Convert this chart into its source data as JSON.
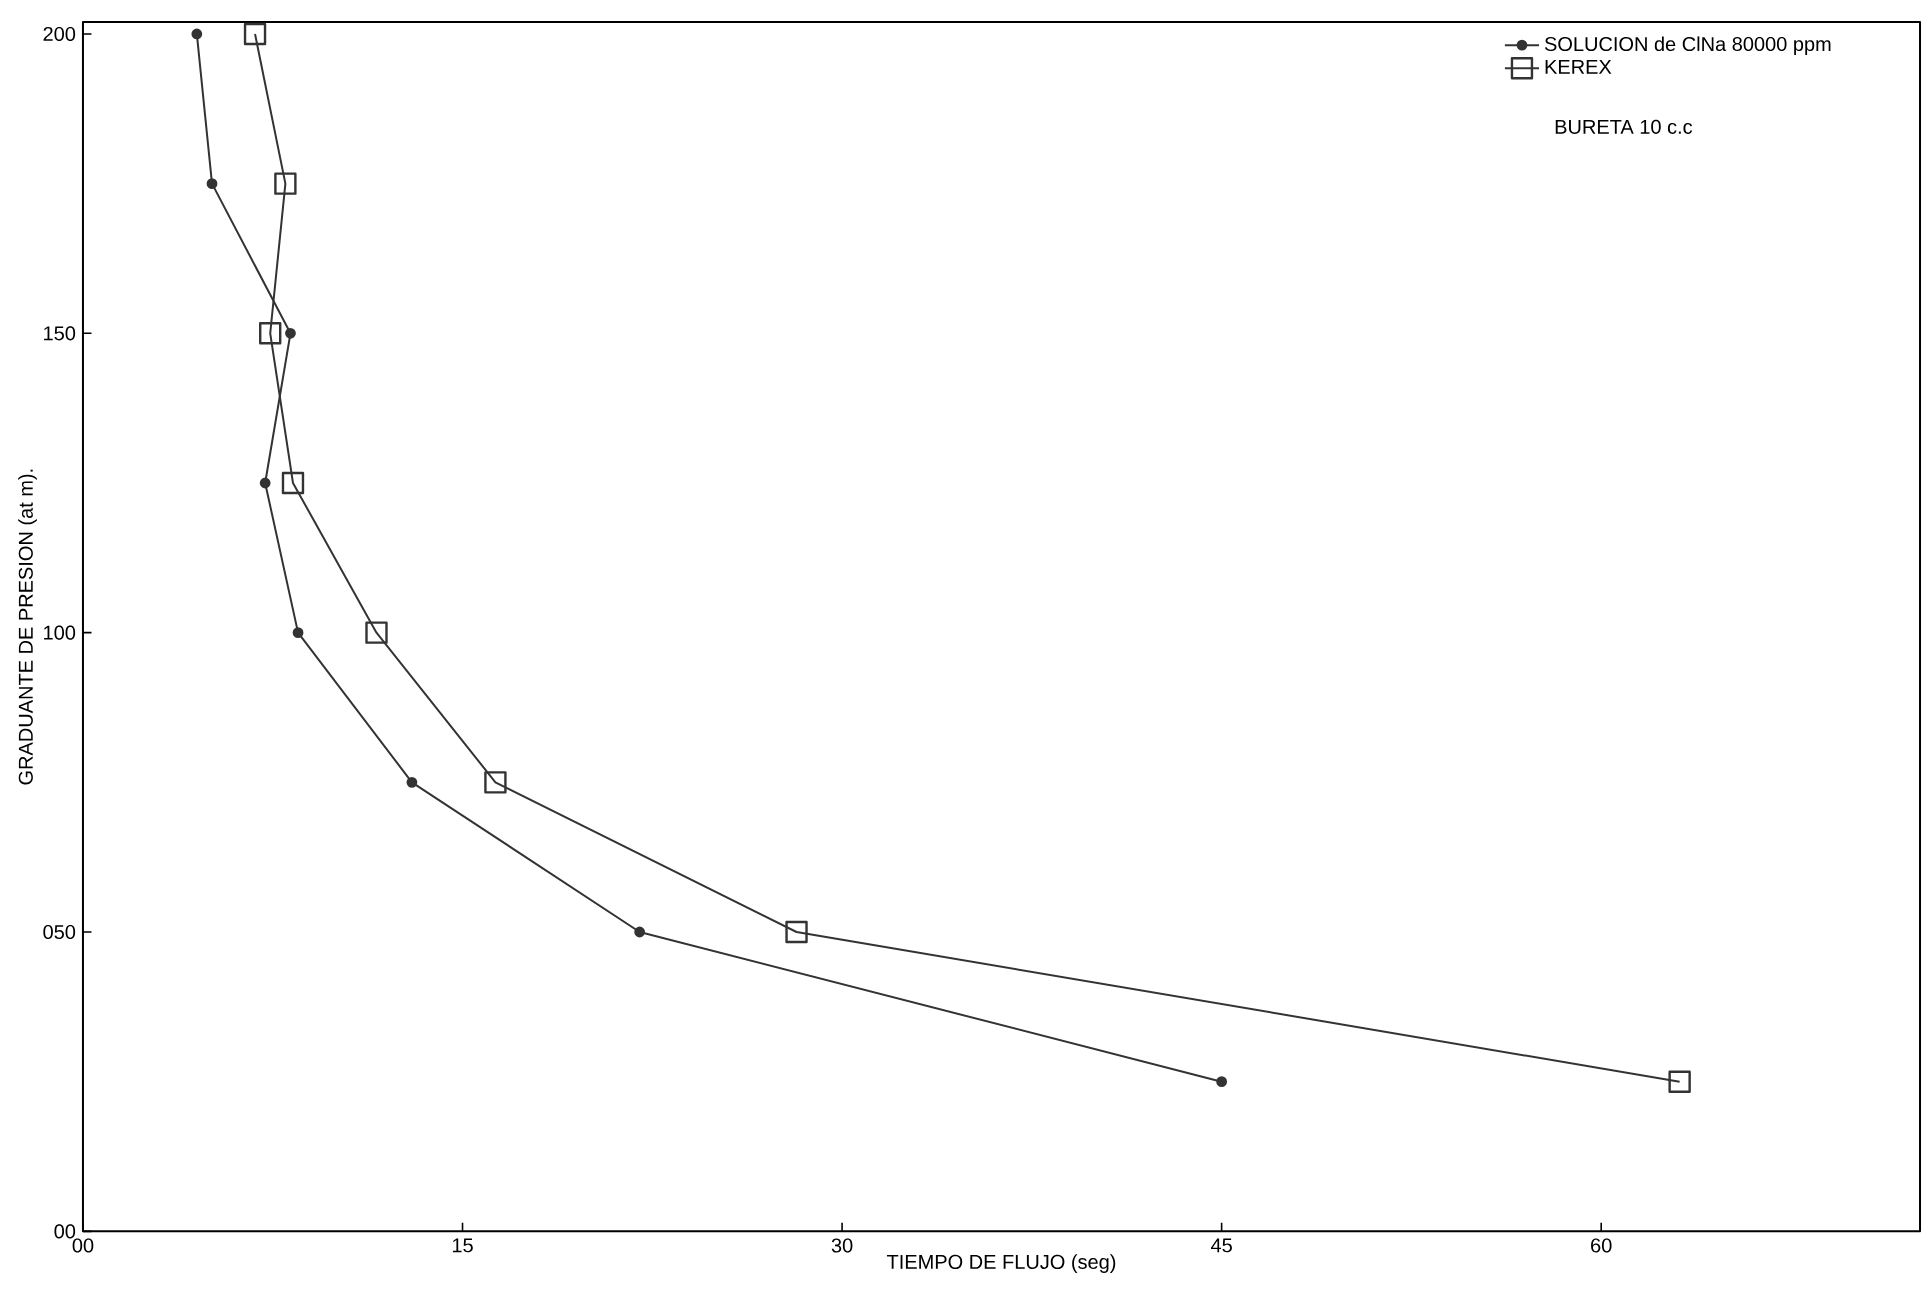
{
  "chart_data": {
    "type": "line",
    "xlabel": "TIEMPO DE FLUJO (seg)",
    "ylabel": "GRADUANTE DE PRESION (at m).",
    "xlim": [
      0,
      72.6
    ],
    "ylim": [
      0,
      202
    ],
    "xticks": [
      {
        "value": 0,
        "label": "00"
      },
      15,
      30,
      45,
      60
    ],
    "yticks": [
      {
        "value": 0,
        "label": "00"
      },
      {
        "value": 50,
        "label": "050"
      },
      100,
      150,
      200
    ],
    "legend": "top right",
    "grid": false,
    "line_style": "solid",
    "annotations": [
      "BURETA 10 c.c"
    ],
    "series": [
      {
        "name": "SOLUCION de ClNa 80000 ppm",
        "color": "#333333",
        "marker": "circle",
        "x": [
          4.5,
          5.1,
          8.2,
          7.2,
          8.5,
          13.0,
          22.0,
          45.0
        ],
        "values": [
          200,
          175,
          150,
          125,
          100,
          75,
          50,
          25
        ]
      },
      {
        "name": "KEREX",
        "color": "#333333",
        "marker": "square",
        "x": [
          6.8,
          8.0,
          7.4,
          8.3,
          11.6,
          16.3,
          28.2,
          63.1
        ],
        "values": [
          200,
          175,
          150,
          125,
          100,
          75,
          50,
          25
        ]
      }
    ]
  }
}
